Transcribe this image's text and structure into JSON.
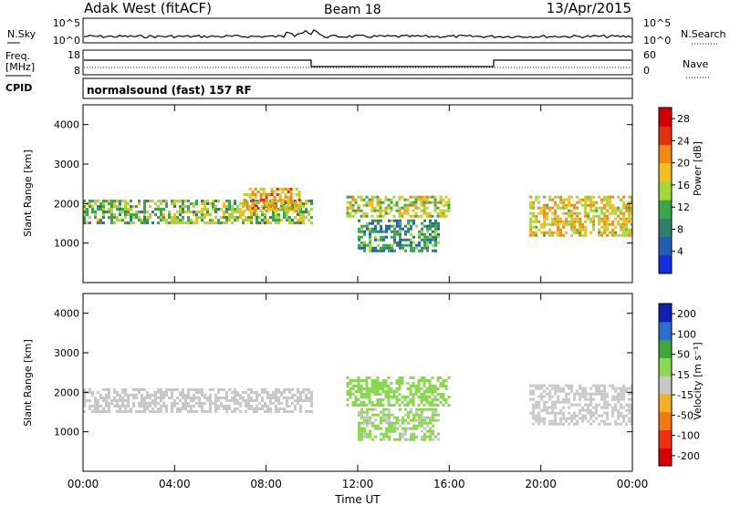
{
  "header": {
    "station": "Adak West (fitACF)",
    "beam": "Beam 18",
    "date": "13/Apr/2015"
  },
  "noise_panel": {
    "left_label": "N.Sky",
    "right_label": "N.Search",
    "left_ticks": [
      "10^5",
      "10^0"
    ],
    "right_ticks": [
      "10^5",
      "10^0"
    ]
  },
  "freq_panel": {
    "left_label_1": "Freq.",
    "left_label_2": "[MHz]",
    "cpid_label": "CPID",
    "left_ticks": [
      "18",
      "8"
    ],
    "right_label": "Nave",
    "right_ticks": [
      "60",
      "0"
    ],
    "mode_text": "normalsound (fast) 157 RF"
  },
  "colors": {
    "axis": "#000000",
    "ground_scatter": "#c8c8c8"
  },
  "chart_data": [
    {
      "type": "heatmap",
      "title": "",
      "xlabel": "Time UT",
      "ylabel": "Slant Range [km]",
      "x_ticks": [
        "00:00",
        "04:00",
        "08:00",
        "12:00",
        "16:00",
        "20:00",
        "00:00"
      ],
      "xlim_hours": [
        0,
        24
      ],
      "ylim_km": [
        0,
        4500
      ],
      "y_ticks": [
        1000,
        2000,
        3000,
        4000
      ],
      "colorbar": {
        "label": "Power [dB]",
        "ticks": [
          4,
          8,
          12,
          16,
          20,
          24,
          28
        ],
        "range": [
          0,
          30
        ],
        "colors": [
          "#1030e0",
          "#2060b0",
          "#2f7f6a",
          "#3aa84a",
          "#a6d63a",
          "#f0c020",
          "#f08a10",
          "#e03010",
          "#d00000"
        ]
      },
      "echo_regions": [
        {
          "start_h": 0.0,
          "end_h": 10.0,
          "range_km": [
            1500,
            2100
          ],
          "level": 14
        },
        {
          "start_h": 7.0,
          "end_h": 9.5,
          "range_km": [
            1800,
            2400
          ],
          "level": 20
        },
        {
          "start_h": 11.5,
          "end_h": 16.0,
          "range_km": [
            1700,
            2200
          ],
          "level": 16
        },
        {
          "start_h": 12.0,
          "end_h": 15.5,
          "range_km": [
            800,
            1600
          ],
          "level": 10
        },
        {
          "start_h": 19.5,
          "end_h": 24.0,
          "range_km": [
            1200,
            2200
          ],
          "level": 18
        }
      ]
    },
    {
      "type": "heatmap",
      "title": "",
      "xlabel": "Time UT",
      "ylabel": "Slant Range [km]",
      "x_ticks": [
        "00:00",
        "04:00",
        "08:00",
        "12:00",
        "16:00",
        "20:00",
        "00:00"
      ],
      "xlim_hours": [
        0,
        24
      ],
      "ylim_km": [
        0,
        4500
      ],
      "y_ticks": [
        1000,
        2000,
        3000,
        4000
      ],
      "colorbar": {
        "label": "Velocity [m s⁻¹]",
        "ticks": [
          "200",
          "100",
          "50",
          "15",
          "-15",
          "-50",
          "-100",
          "-200"
        ],
        "range": [
          -250,
          250
        ],
        "colors": [
          "#d80000",
          "#f03010",
          "#f07810",
          "#f0b020",
          "#c8c8c8",
          "#8ad850",
          "#3fa83a",
          "#2a6fd0",
          "#1020b0"
        ]
      },
      "echo_regions": [
        {
          "start_h": 0.0,
          "end_h": 10.0,
          "range_km": [
            1500,
            2100
          ],
          "level": 0
        },
        {
          "start_h": 11.5,
          "end_h": 16.0,
          "range_km": [
            1700,
            2400
          ],
          "level": 60
        },
        {
          "start_h": 12.0,
          "end_h": 15.5,
          "range_km": [
            800,
            1600
          ],
          "level": 40
        },
        {
          "start_h": 19.5,
          "end_h": 24.0,
          "range_km": [
            1200,
            2200
          ],
          "level": 0
        }
      ]
    }
  ]
}
